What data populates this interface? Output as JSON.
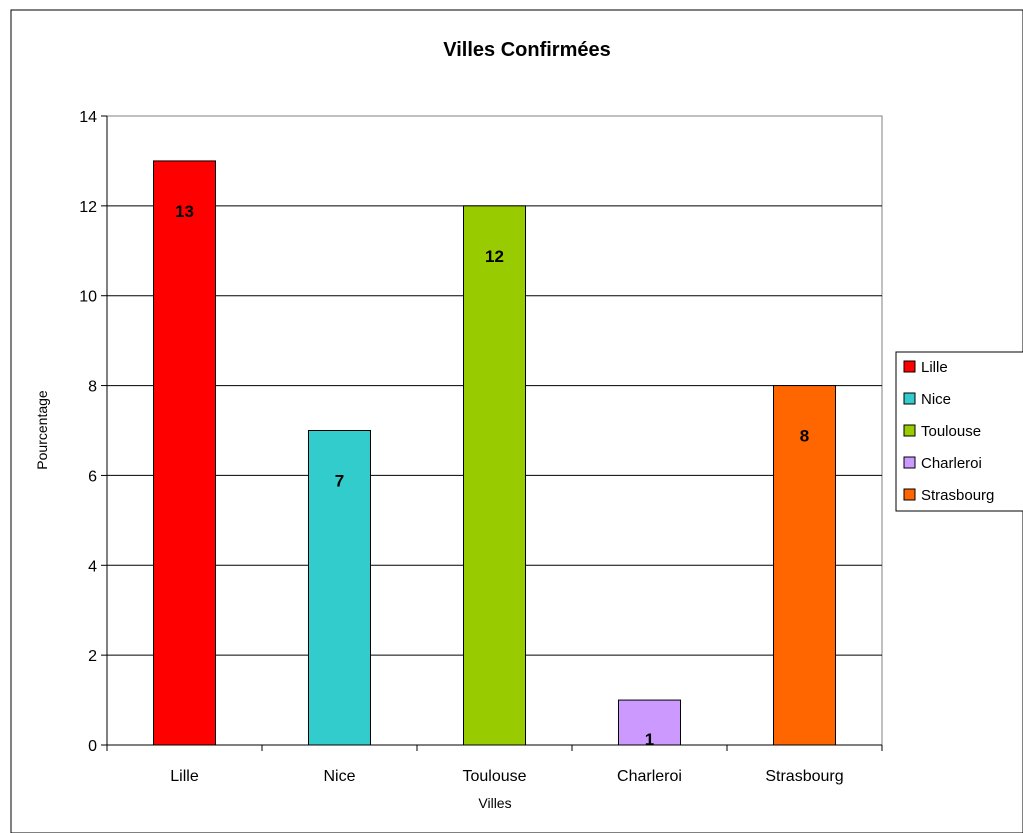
{
  "chart_data": {
    "type": "bar",
    "title": "Villes Confirmées",
    "xlabel": "Villes",
    "ylabel": "Pourcentage",
    "categories": [
      "Lille",
      "Nice",
      "Toulouse",
      "Charleroi",
      "Strasbourg"
    ],
    "values": [
      13,
      7,
      12,
      1,
      8
    ],
    "colors": [
      "#ff0000",
      "#33cccc",
      "#99cc00",
      "#cc99ff",
      "#ff6600"
    ],
    "ylim": [
      0,
      14
    ],
    "yticks": [
      0,
      2,
      4,
      6,
      8,
      10,
      12,
      14
    ],
    "grid": true,
    "legend": {
      "placement": "right",
      "entries": [
        "Lille",
        "Nice",
        "Toulouse",
        "Charleroi",
        "Strasbourg"
      ]
    }
  }
}
